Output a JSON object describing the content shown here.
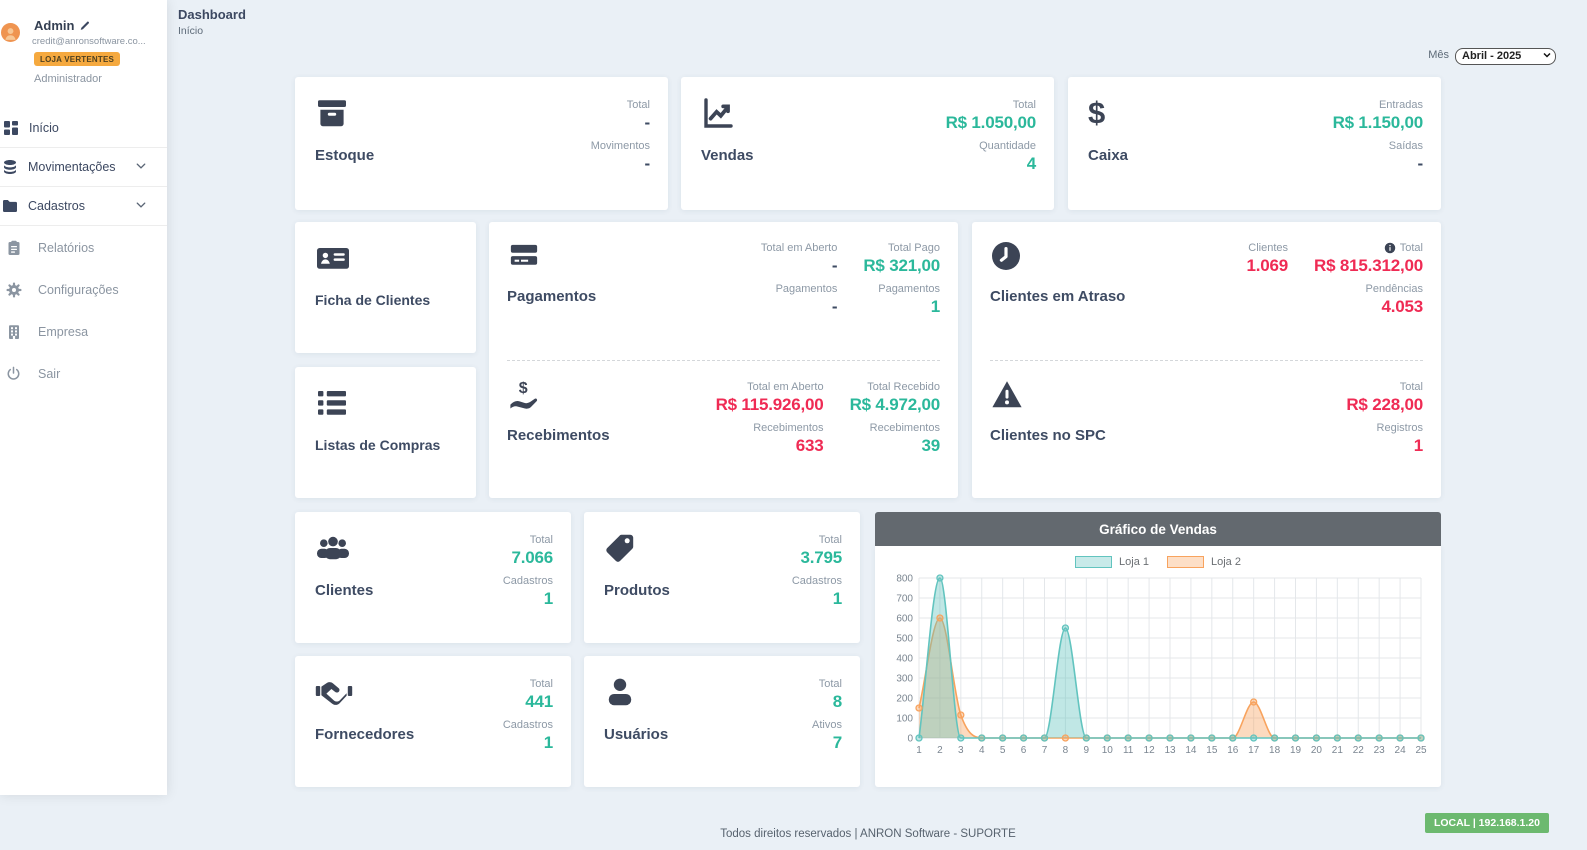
{
  "sidebar": {
    "user": {
      "name": "Admin",
      "email": "credit@anronsoftware.co...",
      "store_badge": "LOJA VERTENTES",
      "role": "Administrador"
    },
    "items": {
      "inicio": "Início",
      "movimentacoes": "Movimentações",
      "cadastros": "Cadastros",
      "relatorios": "Relatórios",
      "configuracoes": "Configurações",
      "empresa": "Empresa",
      "sair": "Sair"
    }
  },
  "header": {
    "title": "Dashboard",
    "breadcrumb": "Início",
    "month_label": "Mês",
    "month_value": "Abril - 2025"
  },
  "cards": {
    "estoque": {
      "title": "Estoque",
      "stats": [
        {
          "label": "Total",
          "value": "-"
        },
        {
          "label": "Movimentos",
          "value": "-"
        }
      ]
    },
    "vendas": {
      "title": "Vendas",
      "stats": [
        {
          "label": "Total",
          "value": "R$ 1.050,00"
        },
        {
          "label": "Quantidade",
          "value": "4"
        }
      ]
    },
    "caixa": {
      "title": "Caixa",
      "stats": [
        {
          "label": "Entradas",
          "value": "R$ 1.150,00"
        },
        {
          "label": "Saídas",
          "value": "-"
        }
      ]
    },
    "ficha": {
      "title": "Ficha de Clientes"
    },
    "listas": {
      "title": "Listas de Compras"
    },
    "pagamentos": {
      "title": "Pagamentos",
      "col1": [
        {
          "label": "Total em Aberto",
          "value": "-"
        },
        {
          "label": "Pagamentos",
          "value": "-"
        }
      ],
      "col2": [
        {
          "label": "Total Pago",
          "value": "R$ 321,00"
        },
        {
          "label": "Pagamentos",
          "value": "1"
        }
      ]
    },
    "recebimentos": {
      "title": "Recebimentos",
      "col1": [
        {
          "label": "Total em Aberto",
          "value": "R$ 115.926,00"
        },
        {
          "label": "Recebimentos",
          "value": "633"
        }
      ],
      "col2": [
        {
          "label": "Total Recebido",
          "value": "R$ 4.972,00"
        },
        {
          "label": "Recebimentos",
          "value": "39"
        }
      ]
    },
    "atraso": {
      "title": "Clientes em Atraso",
      "col1": [
        {
          "label": "Clientes",
          "value": "1.069"
        }
      ],
      "col2": [
        {
          "label": "Total",
          "value": "R$ 815.312,00"
        },
        {
          "label": "Pendências",
          "value": "4.053"
        }
      ]
    },
    "spc": {
      "title": "Clientes no SPC",
      "col2": [
        {
          "label": "Total",
          "value": "R$ 228,00"
        },
        {
          "label": "Registros",
          "value": "1"
        }
      ]
    },
    "clientes": {
      "title": "Clientes",
      "stats": [
        {
          "label": "Total",
          "value": "7.066"
        },
        {
          "label": "Cadastros",
          "value": "1"
        }
      ]
    },
    "produtos": {
      "title": "Produtos",
      "stats": [
        {
          "label": "Total",
          "value": "3.795"
        },
        {
          "label": "Cadastros",
          "value": "1"
        }
      ]
    },
    "fornecedores": {
      "title": "Fornecedores",
      "stats": [
        {
          "label": "Total",
          "value": "441"
        },
        {
          "label": "Cadastros",
          "value": "1"
        }
      ]
    },
    "usuarios": {
      "title": "Usuários",
      "stats": [
        {
          "label": "Total",
          "value": "8"
        },
        {
          "label": "Ativos",
          "value": "7"
        }
      ]
    }
  },
  "chart_data": {
    "type": "area",
    "title": "Gráfico de Vendas",
    "x": [
      1,
      2,
      3,
      4,
      5,
      6,
      7,
      8,
      9,
      10,
      11,
      12,
      13,
      14,
      15,
      16,
      17,
      18,
      19,
      20,
      21,
      22,
      23,
      24,
      25
    ],
    "series": [
      {
        "name": "Loja 1",
        "color": "#62c4bf",
        "fill": "rgba(98,196,191,0.40)",
        "values": [
          0,
          800,
          0,
          0,
          0,
          0,
          0,
          550,
          0,
          0,
          0,
          0,
          0,
          0,
          0,
          0,
          0,
          0,
          0,
          0,
          0,
          0,
          0,
          0,
          0
        ]
      },
      {
        "name": "Loja 2",
        "color": "#f8a35e",
        "fill": "rgba(248,163,94,0.40)",
        "values": [
          150,
          600,
          115,
          0,
          0,
          0,
          0,
          0,
          0,
          0,
          0,
          0,
          0,
          0,
          0,
          0,
          180,
          0,
          0,
          0,
          0,
          0,
          0,
          0,
          0
        ]
      }
    ],
    "ylim": [
      0,
      800
    ],
    "ytick_step": 100,
    "grid": true,
    "legend_position": "top"
  },
  "colors": {
    "accent_green": "#2bb89b",
    "accent_red": "#ef2b54",
    "badge_orange": "#f5a93f",
    "avatar_orange": "#ef9450",
    "chart_header_gray": "#63696f",
    "local_badge_green": "#6cb96f",
    "series_teal": "#62c4bf",
    "series_orange": "#f8a35e"
  },
  "footer": {
    "text": "Todos direitos reservados | ANRON Software - SUPORTE",
    "badge": "LOCAL | 192.168.1.20"
  }
}
